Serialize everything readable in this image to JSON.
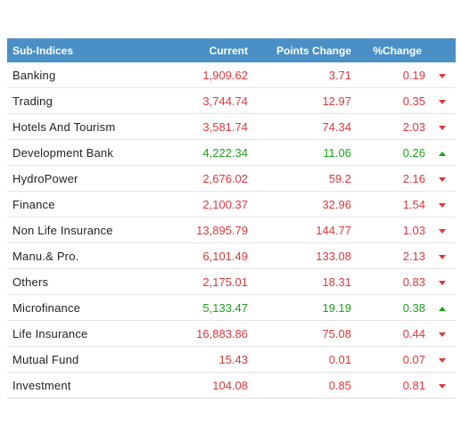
{
  "table": {
    "headers": {
      "name": "Sub-Indices",
      "current": "Current",
      "points": "Points Change",
      "percent": "%Change"
    },
    "colors": {
      "down": "#e0363b",
      "up": "#1aa31a",
      "header_bg": "#4a90c6"
    },
    "rows": [
      {
        "name": "Banking",
        "current": "1,909.62",
        "points": "3.71",
        "percent": "0.19",
        "direction": "down"
      },
      {
        "name": "Trading",
        "current": "3,744.74",
        "points": "12.97",
        "percent": "0.35",
        "direction": "down"
      },
      {
        "name": "Hotels And Tourism",
        "current": "3,581.74",
        "points": "74.34",
        "percent": "2.03",
        "direction": "down"
      },
      {
        "name": "Development Bank",
        "current": "4,222.34",
        "points": "11.06",
        "percent": "0.26",
        "direction": "up"
      },
      {
        "name": "HydroPower",
        "current": "2,676.02",
        "points": "59.2",
        "percent": "2.16",
        "direction": "down"
      },
      {
        "name": "Finance",
        "current": "2,100.37",
        "points": "32.96",
        "percent": "1.54",
        "direction": "down"
      },
      {
        "name": "Non Life Insurance",
        "current": "13,895.79",
        "points": "144.77",
        "percent": "1.03",
        "direction": "down"
      },
      {
        "name": "Manu.& Pro.",
        "current": "6,101.49",
        "points": "133.08",
        "percent": "2.13",
        "direction": "down"
      },
      {
        "name": "Others",
        "current": "2,175.01",
        "points": "18.31",
        "percent": "0.83",
        "direction": "down"
      },
      {
        "name": "Microfinance",
        "current": "5,133.47",
        "points": "19.19",
        "percent": "0.38",
        "direction": "up"
      },
      {
        "name": "Life Insurance",
        "current": "16,883.86",
        "points": "75.08",
        "percent": "0.44",
        "direction": "down"
      },
      {
        "name": "Mutual Fund",
        "current": "15.43",
        "points": "0.01",
        "percent": "0.07",
        "direction": "down"
      },
      {
        "name": "Investment",
        "current": "104.08",
        "points": "0.85",
        "percent": "0.81",
        "direction": "down"
      }
    ]
  }
}
